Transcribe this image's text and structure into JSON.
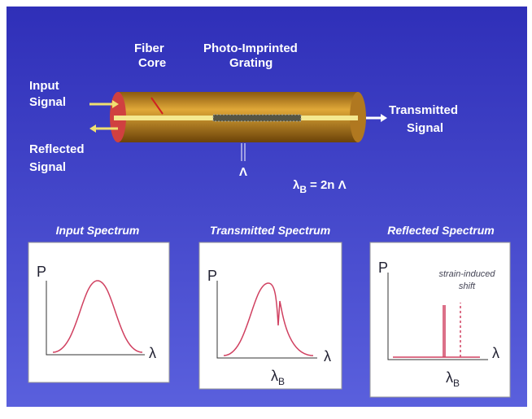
{
  "labels": {
    "fiber_core": [
      "Fiber",
      "Core"
    ],
    "grating": [
      "Photo-Imprinted",
      "Grating"
    ],
    "input_signal": [
      "Input",
      "Signal"
    ],
    "reflected_signal": [
      "Reflected",
      "Signal"
    ],
    "transmitted_signal": [
      "Transmitted",
      "Signal"
    ],
    "period": "Λ"
  },
  "equation": {
    "symbol": "λ",
    "subscript": "B",
    "rest": "= 2n Λ"
  },
  "panels": [
    {
      "title": "Input Spectrum",
      "y_axis": "P",
      "x_axis": "λ"
    },
    {
      "title": "Transmitted Spectrum",
      "y_axis": "P",
      "x_axis": "λ",
      "marker": {
        "symbol": "λ",
        "subscript": "B"
      }
    },
    {
      "title": "Reflected Spectrum",
      "y_axis": "P",
      "x_axis": "λ",
      "marker": {
        "symbol": "λ",
        "subscript": "B"
      },
      "note": [
        "strain-induced",
        "shift"
      ]
    }
  ]
}
